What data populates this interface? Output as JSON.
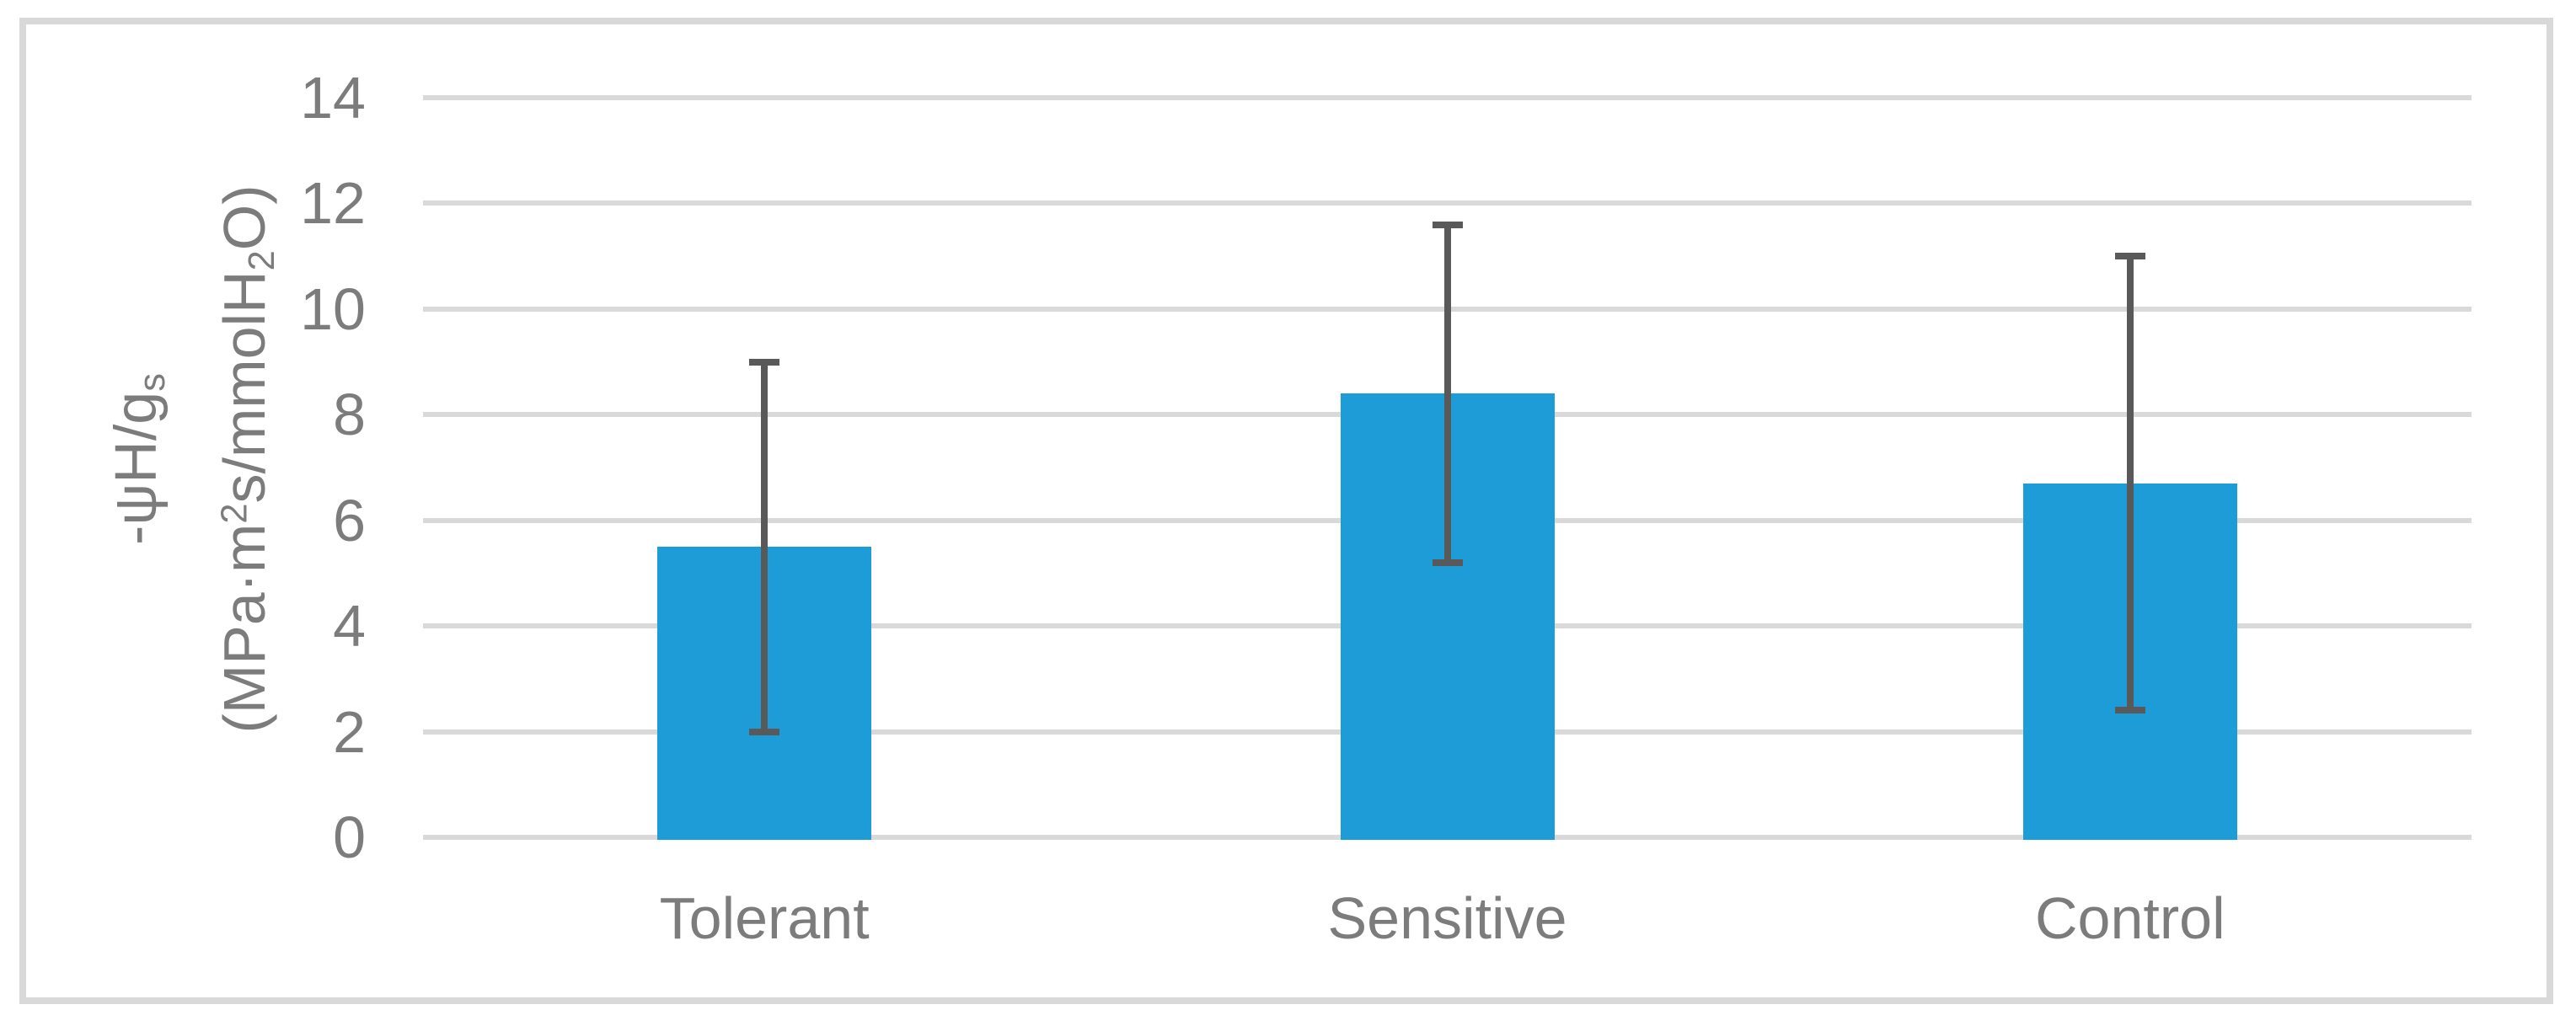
{
  "chart_data": {
    "type": "bar",
    "title": "",
    "categories": [
      "Tolerant",
      "Sensitive",
      "Control"
    ],
    "values": [
      5.5,
      8.4,
      6.7
    ],
    "error_bars": {
      "low": [
        2.0,
        5.2,
        2.4
      ],
      "high": [
        9.0,
        11.6,
        11.0
      ]
    },
    "xlabel": "",
    "ylabel": {
      "line1": {
        "main": "-ψH/g",
        "sub": "s"
      },
      "line2": {
        "p1": "(MPa·m",
        "sup": "2",
        "p2": "s/mmolH",
        "sub": "2",
        "p3": "O)"
      }
    },
    "ylim": [
      0,
      14
    ],
    "ytick_step": 2,
    "yticks": [
      0,
      2,
      4,
      6,
      8,
      10,
      12,
      14
    ],
    "grid": "horizontal",
    "legend_position": "none",
    "colors": {
      "bar": "#1E9CD7",
      "error_bar": "#595959",
      "gridline": "#D9D9D9",
      "frame": "#D9D9D9",
      "text": "#7C7C7C",
      "background": "#FFFFFF"
    }
  }
}
